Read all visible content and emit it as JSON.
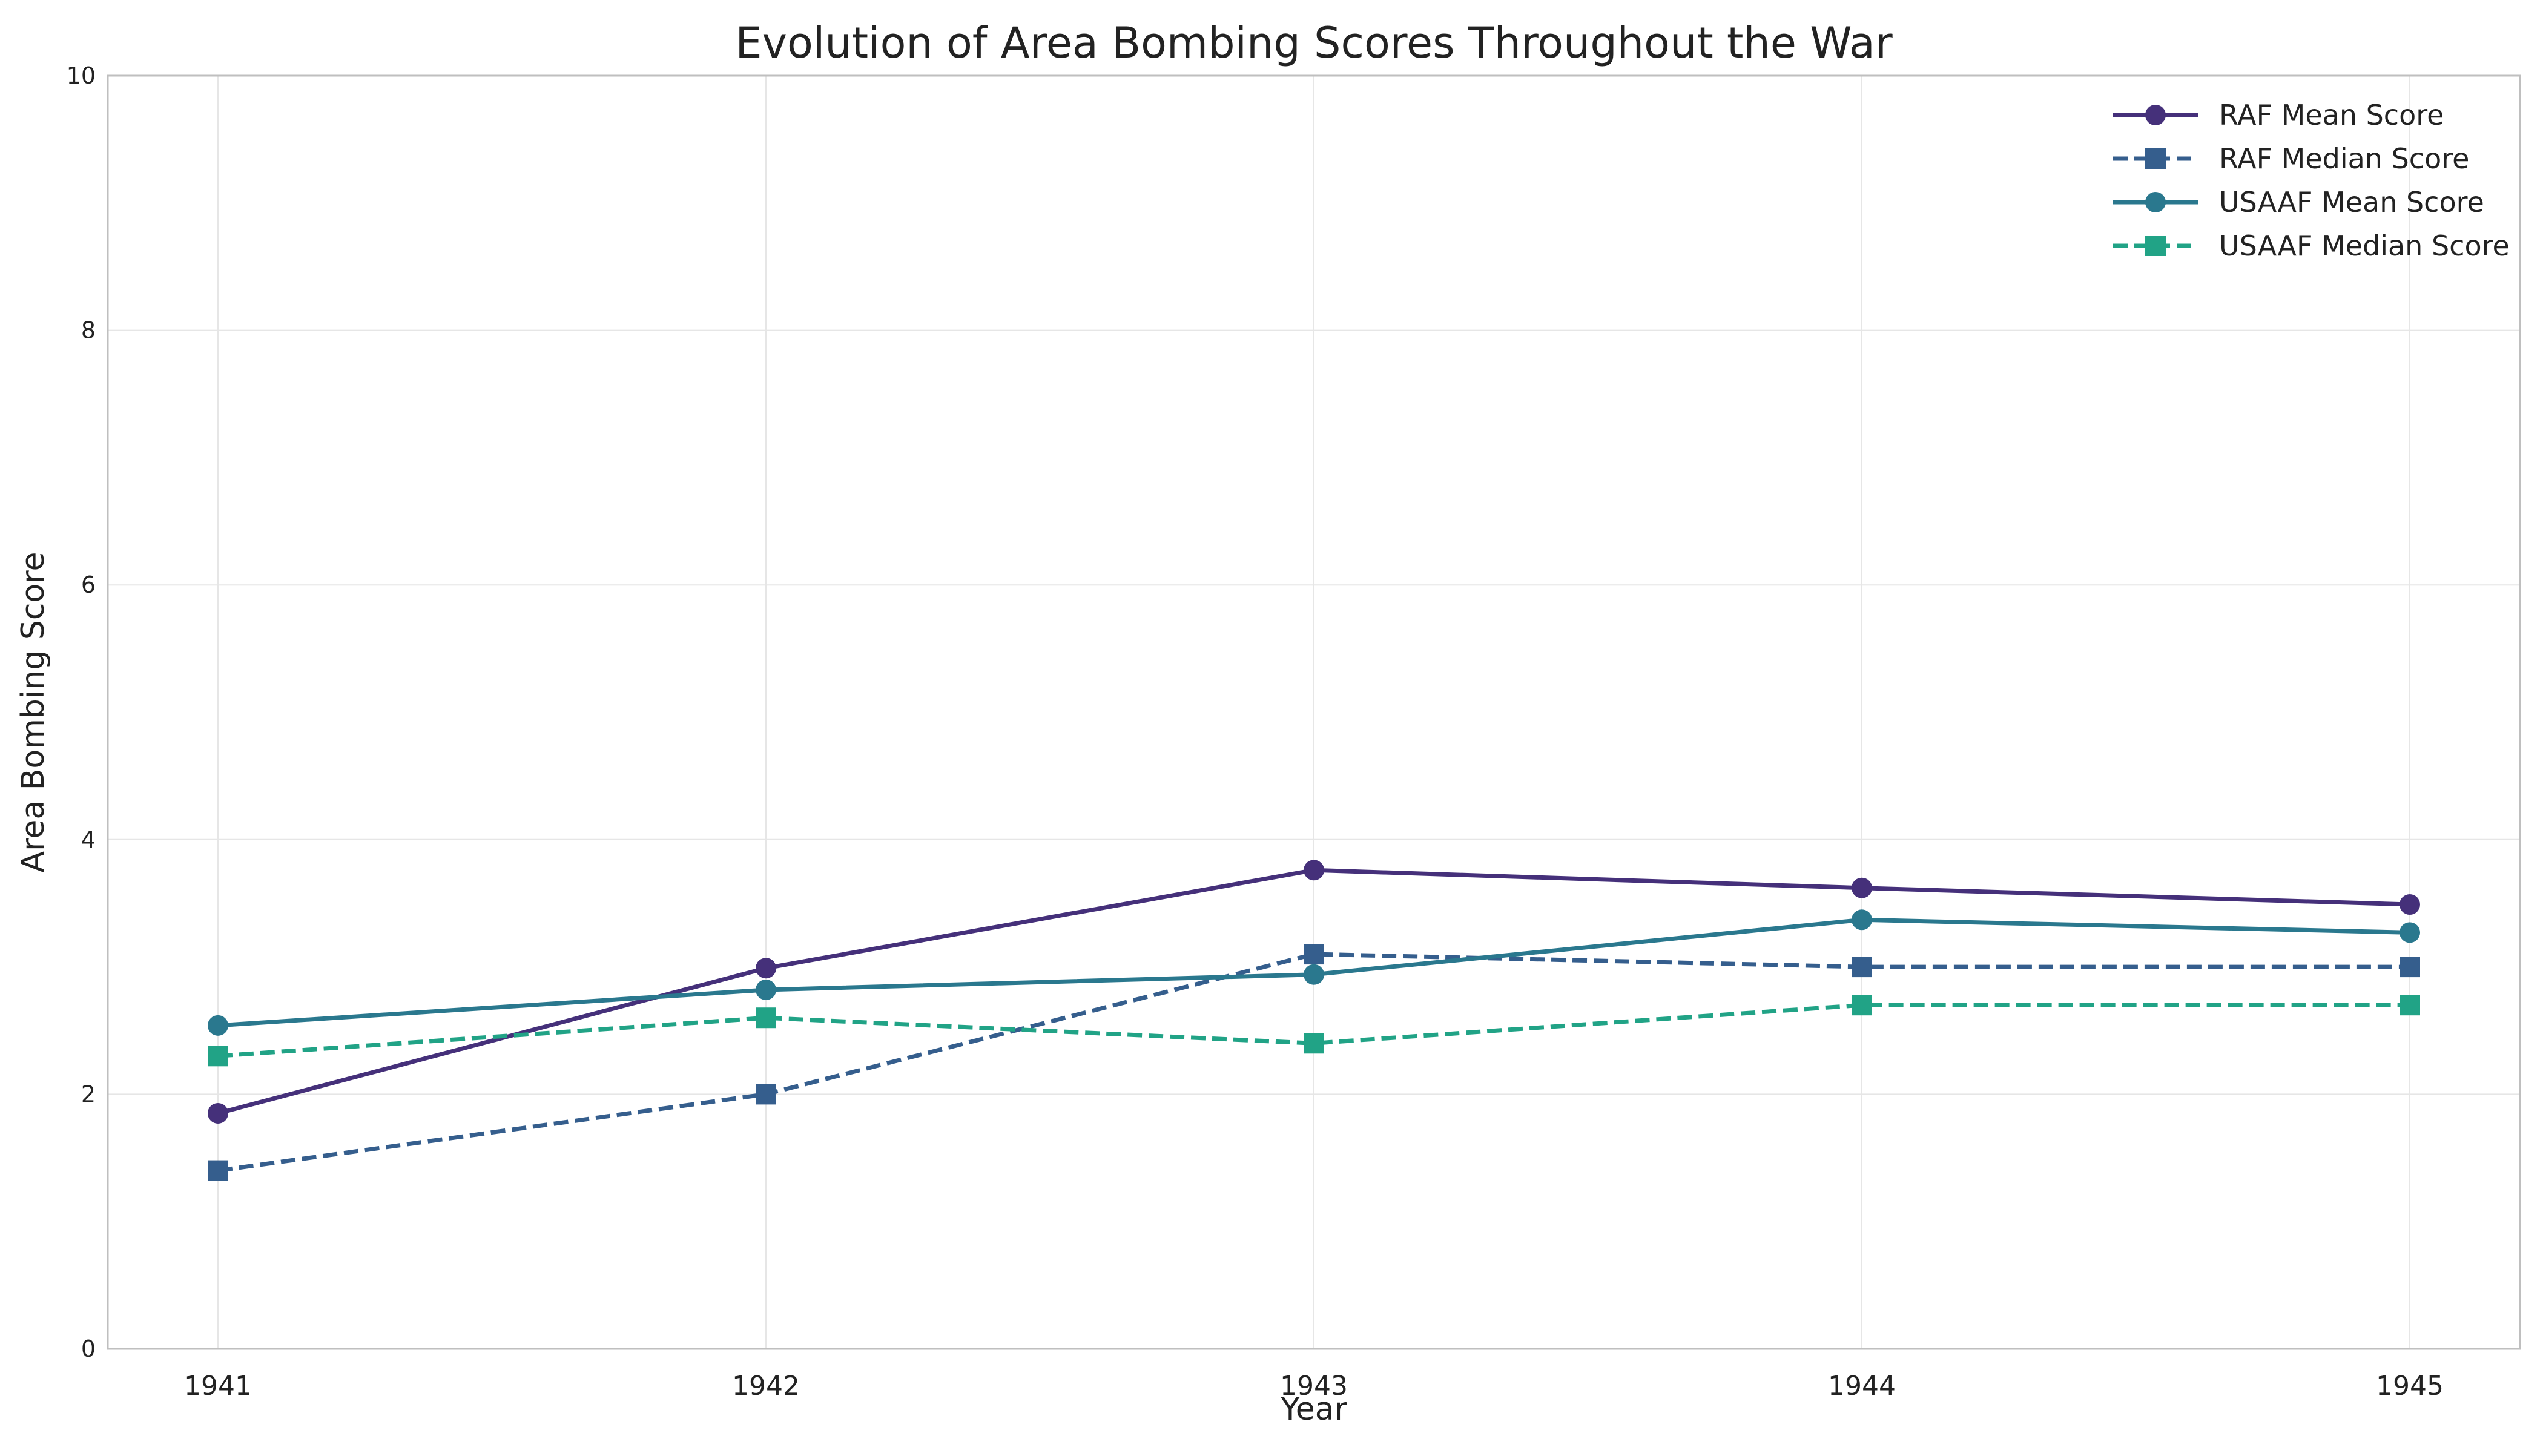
{
  "chart_data": {
    "type": "line",
    "title": "Evolution of Area Bombing Scores Throughout the War",
    "xlabel": "Year",
    "ylabel": "Area Bombing Score",
    "categories": [
      "1941",
      "1942",
      "1943",
      "1944",
      "1945"
    ],
    "ylim": [
      0,
      10
    ],
    "yticks": [
      "0",
      "2",
      "4",
      "6",
      "8",
      "10"
    ],
    "grid": true,
    "legend_position": "top-right",
    "series": [
      {
        "name": "RAF Mean Score",
        "values": [
          1.85,
          2.99,
          3.76,
          3.62,
          3.49
        ],
        "color": "#45307a",
        "dashed": false,
        "marker": "circle"
      },
      {
        "name": "RAF Median Score",
        "values": [
          1.4,
          2.0,
          3.1,
          3.0,
          3.0
        ],
        "color": "#355e8d",
        "dashed": true,
        "marker": "square"
      },
      {
        "name": "USAAF Mean Score",
        "values": [
          2.54,
          2.82,
          2.94,
          3.37,
          3.27
        ],
        "color": "#2a788e",
        "dashed": false,
        "marker": "circle"
      },
      {
        "name": "USAAF Median Score",
        "values": [
          2.3,
          2.6,
          2.4,
          2.7,
          2.7
        ],
        "color": "#21a386",
        "dashed": true,
        "marker": "square"
      }
    ]
  }
}
